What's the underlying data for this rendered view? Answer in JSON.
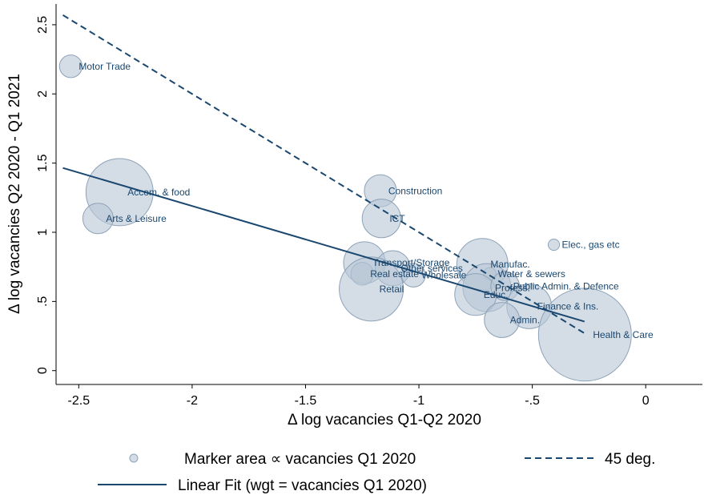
{
  "chart_data": {
    "type": "scatter",
    "x_label": "Δ log vacancies Q1-Q2 2020",
    "y_label": "Δ log vacancies Q2 2020 - Q1 2021",
    "xlim": [
      -2.6,
      0.25
    ],
    "ylim": [
      -0.1,
      2.65
    ],
    "xticks": [
      -2.5,
      -2,
      -1.5,
      -1,
      {
        "value": -0.5,
        "label": "-.5"
      },
      0
    ],
    "yticks": [
      0,
      {
        "value": 0.5,
        "label": ".5"
      },
      1,
      1.5,
      2,
      2.5
    ],
    "series": [
      {
        "name": "Marker area ∝ vacancies Q1 2020",
        "kind": "bubble",
        "color": "#b7c6d6",
        "labels": [
          "Motor Trade",
          "Accom. & food",
          "Arts & Leisure",
          "Construction",
          "ICT",
          "Elec., gas etc",
          "Manufac.",
          "Water & sewers",
          "Transport/Storage",
          "Other services",
          "Wholesale",
          "Real estate",
          "Retail",
          "Profess.",
          "Educ.",
          "Public Admin. & Defence",
          "Finance & Ins.",
          "Admin.",
          "Health & Care"
        ],
        "x": [
          -2.535,
          -2.32,
          -2.415,
          -1.17,
          -1.165,
          -0.405,
          -0.72,
          -0.687,
          -1.24,
          -1.115,
          -1.024,
          -1.25,
          -1.21,
          -0.7,
          -0.75,
          -0.62,
          -0.514,
          -0.634,
          -0.268
        ],
        "values": [
          2.2,
          1.29,
          1.1,
          1.3,
          1.1,
          0.91,
          0.77,
          0.7,
          0.78,
          0.74,
          0.69,
          0.7,
          0.59,
          0.6,
          0.55,
          0.61,
          0.465,
          0.366,
          0.26
        ],
        "sizes": [
          20,
          176,
          36,
          40,
          58,
          5,
          102,
          6,
          68,
          48,
          22,
          20,
          160,
          90,
          68,
          32,
          78,
          48,
          336
        ]
      },
      {
        "name": "45 deg.",
        "kind": "line",
        "dash": true,
        "color": "#1a476f",
        "x": [
          -2.57,
          -0.27
        ],
        "values": [
          2.57,
          0.27
        ]
      },
      {
        "name": "Linear Fit (wgt = vacancies Q1 2020)",
        "kind": "line",
        "dash": false,
        "color": "#1a476f",
        "x": [
          -2.57,
          -0.27
        ],
        "values": [
          1.465,
          0.355
        ]
      }
    ]
  }
}
